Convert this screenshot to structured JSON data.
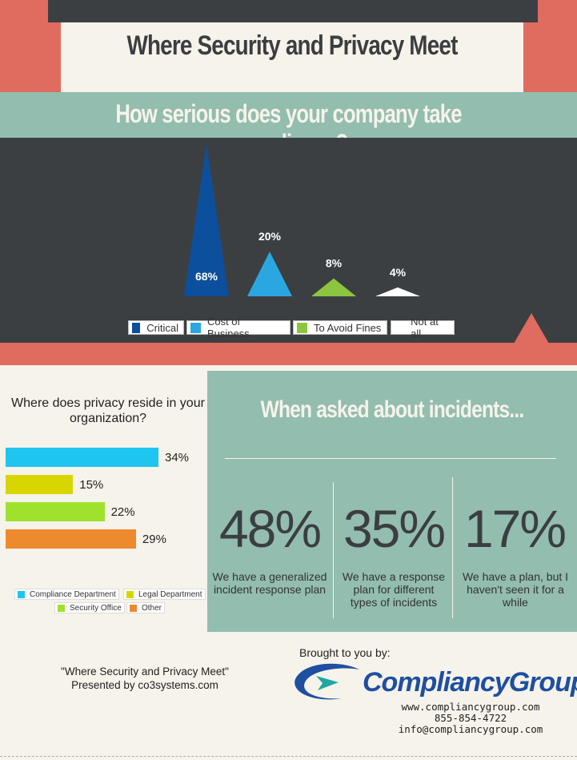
{
  "header": {
    "title": "Where Security and Privacy Meet"
  },
  "question": {
    "title": "How serious does your company take compliance?"
  },
  "chart_data": [
    {
      "type": "bar",
      "title": "How serious does your company take compliance?",
      "categories": [
        "Critical",
        "Cost of Business",
        "To Avoid Fines",
        "Not at all"
      ],
      "values": [
        68,
        20,
        8,
        4
      ],
      "value_labels": [
        "68%",
        "20%",
        "8%",
        "4%"
      ],
      "colors": [
        "#0c4f9c",
        "#2aa7e1",
        "#8cc63f",
        "#ffffff"
      ],
      "mark_shape": "triangle",
      "legend": "bottom"
    },
    {
      "type": "bar",
      "orientation": "horizontal",
      "title": "Where does privacy reside in your organization?",
      "categories": [
        "Compliance Department",
        "Legal Department",
        "Security Office",
        "Other"
      ],
      "values": [
        34,
        15,
        22,
        29
      ],
      "value_labels": [
        "34%",
        "15%",
        "22%",
        "29%"
      ],
      "colors": [
        "#1ec5ef",
        "#d7d600",
        "#9ee22e",
        "#ee8a2e"
      ],
      "legend": "bottom"
    }
  ],
  "privacy": {
    "title": "Where does privacy reside in your organization?"
  },
  "incidents": {
    "title": "When asked about incidents...",
    "items": [
      {
        "pct": "48%",
        "desc": "We have a generalized incident response plan"
      },
      {
        "pct": "35%",
        "desc": "We have a response plan for different types of incidents"
      },
      {
        "pct": "17%",
        "desc": "We have a plan, but I haven't seen it for a while"
      }
    ]
  },
  "footer": {
    "credit_line1": "\"Where Security and Privacy Meet\"",
    "credit_line2": "Presented by co3systems.com",
    "brought_by": "Brought to you by:",
    "brand": "CompliancyGroup",
    "website": "www.compliancygroup.com",
    "phone": "855-854-4722",
    "email": "info@compliancygroup.com"
  }
}
